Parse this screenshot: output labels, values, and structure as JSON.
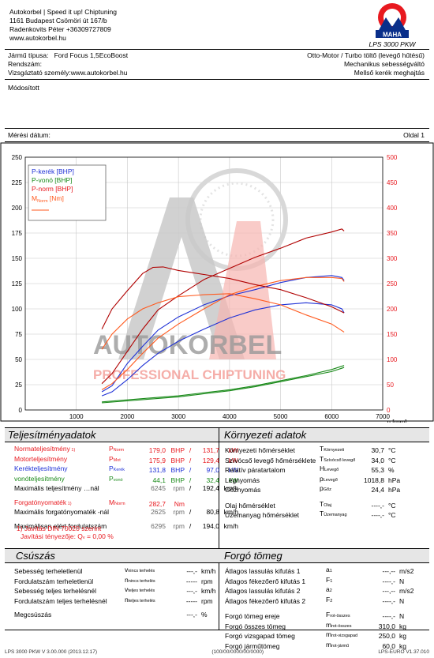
{
  "header": {
    "company_lines": [
      "Autokorbel | Speed it up! Chiptuning",
      "1161 Budapest Csömöri út 167/b",
      "Radenkovits Péter +36309727809",
      "www.autokorbel.hu"
    ],
    "logo_ring_text": "Messtechnik & Fahrleistung",
    "logo_brand": "MAHA",
    "model": "LPS 3000 PKW"
  },
  "vehicle": {
    "type_label": "Jármű típusa:",
    "type_value": "Ford Focus 1,5EcoBoost",
    "plate_label": "Rendszám:",
    "tester_label": "Vizsgáztató személy:",
    "tester_value": "www.autokorbel.hu",
    "engine": "Otto-Motor / Turbo töltő (levegő hűtésű)",
    "gearbox": "Mechanikus sebességváltó",
    "drive": "Mellső kerék meghajtás"
  },
  "note": "Módosított",
  "measure_date_label": "Mérési dátum:",
  "page_label": "Oldal 1",
  "watermark": {
    "line1": "AUTOKORBEL",
    "line2": "PROFESSIONAL CHIPTUNING"
  },
  "colors": {
    "red": "#e8191f",
    "blue": "#1f31d6",
    "green": "#1a8a1a",
    "orange": "#ff5a1f",
    "darkred": "#b00000"
  },
  "chart_data": {
    "type": "line",
    "x_ticks": [
      "1000",
      "2000",
      "3000",
      "4000",
      "5000",
      "6000",
      "7000"
    ],
    "x_unit": "n [rpm]",
    "y_left_ticks": [
      "0",
      "25",
      "50",
      "75",
      "100",
      "125",
      "150",
      "175",
      "200",
      "225",
      "250"
    ],
    "y_right_ticks": [
      "0",
      "50",
      "100",
      "150",
      "200",
      "250",
      "300",
      "350",
      "400",
      "450",
      "500"
    ],
    "xlim": [
      0,
      7000
    ],
    "ylim_left": [
      0,
      250
    ],
    "ylim_right": [
      0,
      500
    ],
    "legend": [
      "P-kerék [BHP]",
      "P-vonó [BHP]",
      "P-norm [BHP]",
      "M",
      "Norm",
      " [Nm]"
    ],
    "series": [
      {
        "name": "P-kerék [BHP]",
        "color": "#1f31d6",
        "x": [
          1500,
          1700,
          2000,
          2300,
          2600,
          3000,
          3500,
          4000,
          4500,
          5000,
          5500,
          6000,
          6200,
          6245
        ],
        "y": [
          18,
          24,
          46,
          63,
          79,
          92,
          104,
          113,
          119,
          126,
          131,
          133,
          131,
          128
        ]
      },
      {
        "name": "P-kerék [BHP] (2)",
        "color": "#1f31d6",
        "x": [
          1500,
          1700,
          2000,
          2300,
          2600,
          3000,
          3500,
          4000,
          4500,
          5000,
          5500,
          6000,
          6200,
          6245
        ],
        "y": [
          14,
          18,
          30,
          44,
          56,
          68,
          80,
          91,
          99,
          104,
          106,
          104,
          100,
          96
        ]
      },
      {
        "name": "P-vonó [BHP]",
        "color": "#1a8a1a",
        "x": [
          1500,
          2000,
          2500,
          3000,
          3500,
          4000,
          4500,
          5000,
          5500,
          6000,
          6245
        ],
        "y": [
          8,
          10,
          12,
          14,
          17,
          20,
          24,
          29,
          34,
          40,
          44
        ]
      },
      {
        "name": "P-vonó [BHP] (2)",
        "color": "#1a8a1a",
        "x": [
          1500,
          2000,
          2500,
          3000,
          3500,
          4000,
          4500,
          5000,
          5500,
          6000,
          6245
        ],
        "y": [
          7,
          9,
          11,
          13,
          16,
          19,
          23,
          28,
          33,
          38,
          42
        ]
      },
      {
        "name": "P-norm [BHP]",
        "color": "#b00000",
        "x": [
          1500,
          1700,
          2000,
          2300,
          2600,
          3000,
          3500,
          4000,
          4500,
          5000,
          5500,
          6000,
          6200,
          6245
        ],
        "y": [
          26,
          36,
          58,
          80,
          99,
          113,
          129,
          140,
          151,
          160,
          170,
          176,
          179,
          177
        ]
      },
      {
        "name": "P-norm [BHP] (2)",
        "color": "#ff5a1f",
        "x": [
          1500,
          1700,
          2000,
          2300,
          2600,
          3000,
          3500,
          4000,
          4500,
          5000,
          5500,
          6000,
          6200,
          6245
        ],
        "y": [
          20,
          26,
          40,
          56,
          71,
          85,
          100,
          114,
          122,
          128,
          131,
          131,
          130,
          127
        ]
      },
      {
        "name": "M Norm [Nm]",
        "color": "#b00000",
        "x": [
          1500,
          1700,
          2000,
          2300,
          2500,
          2700,
          3000,
          3500,
          4000,
          4500,
          5000,
          5500,
          6000,
          6245
        ],
        "y_right": [
          160,
          200,
          236,
          270,
          282,
          283,
          276,
          268,
          260,
          248,
          238,
          222,
          204,
          192
        ]
      },
      {
        "name": "M Norm [Nm] (2)",
        "color": "#ff5a1f",
        "x": [
          1500,
          1700,
          2000,
          2300,
          2600,
          3000,
          3500,
          4000,
          4500,
          5000,
          5500,
          6000,
          6245
        ],
        "y_right": [
          120,
          150,
          180,
          200,
          212,
          224,
          228,
          230,
          220,
          208,
          188,
          170,
          154
        ]
      }
    ]
  },
  "performance": {
    "title": "Teljesítményadatok",
    "rows": [
      {
        "label": "Normateljesítmény",
        "label_sup": " 1)",
        "sym": "P",
        "sym_sub": "Norm",
        "v1": "179,0",
        "u1": "BHP",
        "sep": "/",
        "v2": "131,7",
        "u2": "kW",
        "color": "#e8191f"
      },
      {
        "label": "Motorteljesítmény",
        "label_sup": "",
        "sym": "P",
        "sym_sub": "Mot",
        "v1": "175,9",
        "u1": "BHP",
        "sep": "/",
        "v2": "129,4",
        "u2": "kW",
        "color": "#e8191f"
      },
      {
        "label": "Kerékteljesítmény",
        "label_sup": "",
        "sym": "P",
        "sym_sub": "Kerék",
        "v1": "131,8",
        "u1": "BHP",
        "sep": "/",
        "v2": "97,0",
        "u2": "kW",
        "color": "#1f31d6"
      },
      {
        "label": "vonóteljesítmény",
        "label_sup": "",
        "sym": "P",
        "sym_sub": "vonó",
        "v1": "44,1",
        "u1": "BHP",
        "sep": "/",
        "v2": "32,4",
        "u2": "kW",
        "color": "#1a8a1a"
      }
    ],
    "max_row": {
      "label": "Maximális teljesítmény …nál",
      "v1": "6245",
      "u1": "rpm",
      "sep": "/",
      "v2": "192,4",
      "u2": "km/h"
    },
    "torque_row": {
      "label": "Forgatónyomaték",
      "label_sup": " 1)",
      "sym": "M",
      "sym_sub": "Norm",
      "v1": "282,7",
      "u1": "Nm"
    },
    "max_torque_row": {
      "label": "Maximális forgatónyomaték -nál",
      "v1": "2625",
      "u1": "rpm",
      "sep": "/",
      "v2": "80,8",
      "u2": "km/h"
    },
    "max_rpm_row": {
      "label": "Maximálisan elért fordulatszám",
      "v1": "6295",
      "u1": "rpm",
      "sep": "/",
      "v2": "194,0",
      "u2": "km/h"
    },
    "din_note": "1) Javítás DIN 70020 szerint",
    "factor_note": "Javítási tényezője: Q",
    "factor_sub": "v",
    "factor_value": " =     0,00 %"
  },
  "environment": {
    "title": "Környezeti adatok",
    "rows": [
      {
        "label": "Környezeti hőmérséklet",
        "sym": "T",
        "sym_sub": "Környezeti",
        "value": "30,7",
        "unit": "°C"
      },
      {
        "label": "Szívócső levegő hőmérséklete",
        "sym": "T",
        "sym_sub": "Szívócső levegő",
        "value": "34,0",
        "unit": "°C"
      },
      {
        "label": "Relatív páratartalom",
        "sym": "H",
        "sym_sub": "Levegő",
        "value": "55,3",
        "unit": "%"
      },
      {
        "label": "Légnyomás",
        "sym": "p",
        "sym_sub": "Levegő",
        "value": "1018,8",
        "unit": "hPa"
      },
      {
        "label": "Gőznyomás",
        "sym": "p",
        "sym_sub": "Gőz",
        "value": "24,4",
        "unit": "hPa"
      },
      {
        "label": "Olaj hőmérséklet",
        "sym": "T",
        "sym_sub": "Olaj",
        "value": "----,-",
        "unit": "°C"
      },
      {
        "label": "Üzemanyag hőmérséklet",
        "sym": "T",
        "sym_sub": "Üzemanyag",
        "value": "----,-",
        "unit": "°C"
      }
    ]
  },
  "slip": {
    "title": "Csúszás",
    "rows": [
      {
        "label": "Sebesség terheletlenül",
        "sym": "v",
        "sym_sub": "nincs terhelés",
        "value": "---,-",
        "unit": "km/h"
      },
      {
        "label": "Fordulatszám terheletlenül",
        "sym": "n",
        "sym_sub": "nincs terhelés",
        "value": "-----",
        "unit": "rpm"
      },
      {
        "label": "Sebesség teljes terhelésnél",
        "sym": "v",
        "sym_sub": "teljes terhelés",
        "value": "---,-",
        "unit": "km/h"
      },
      {
        "label": "Fordulatszám teljes terhelésnél",
        "sym": "n",
        "sym_sub": "teljes terhelés",
        "value": "-----",
        "unit": "rpm"
      }
    ],
    "slip_row": {
      "label": "Megcsúszás",
      "value": "---,-",
      "unit": "%"
    }
  },
  "inertia": {
    "title": "Forgó tömeg",
    "rows": [
      {
        "label": "Átlagos lassulás kifutás 1",
        "sym": "a",
        "sym_sub": "1",
        "value": "---,--",
        "unit": "m/s2"
      },
      {
        "label": "Átlagos fékezőerő kifutás 1",
        "sym": "F",
        "sym_sub": "1",
        "value": "----,-",
        "unit": "N"
      },
      {
        "label": "Átlagos lassulás kifutás 2",
        "sym": "a",
        "sym_sub": "2",
        "value": "---,--",
        "unit": "m/s2"
      },
      {
        "label": "Átlagos fékezőerő kifutás 2",
        "sym": "F",
        "sym_sub": "2",
        "value": "----,-",
        "unit": "N"
      },
      {
        "label": "Forgó tömeg ereje",
        "sym": "F",
        "sym_sub": "rot-összes",
        "value": "----,-",
        "unit": "N"
      },
      {
        "label": "Forgó összes tömeg",
        "sym": "m",
        "sym_sub": "rot-összes",
        "value": "310,0",
        "unit": "kg"
      },
      {
        "label": "Forgó vizsgapad tömeg",
        "sym": "m",
        "sym_sub": "rot-vizsgapad",
        "value": "250,0",
        "unit": "kg"
      },
      {
        "label": "Forgó járműtömeg",
        "sym": "m",
        "sym_sub": "rot-jármű",
        "value": "60,0",
        "unit": "kg"
      }
    ]
  },
  "footer": {
    "left": "LPS 3000 PKW V 3.00.000 (2013.12.17)",
    "center": "(100/00/0000/00/0000)",
    "right": "LPS-EURO V1.37.010"
  }
}
